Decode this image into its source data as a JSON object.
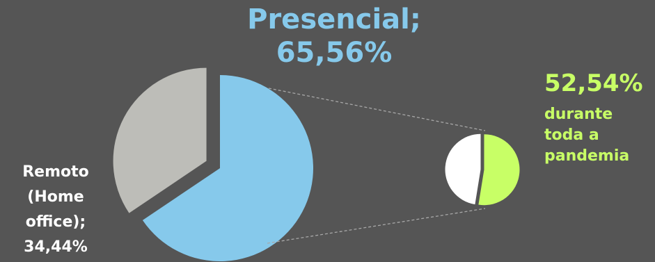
{
  "chart_data": [
    {
      "type": "pie",
      "slices": [
        {
          "label": "Presencial",
          "value": 65.56,
          "color": "#86C9EB",
          "exploded": false
        },
        {
          "label": "Remoto (Home office)",
          "value": 34.44,
          "color": "#BDBDB8",
          "exploded": true
        }
      ]
    },
    {
      "type": "pie",
      "slices": [
        {
          "label": "durante toda a pandemia",
          "value": 52.54,
          "color": "#C8FF66"
        },
        {
          "label": "",
          "value": 47.46,
          "color": "#FFFFFF"
        }
      ]
    }
  ],
  "labels": {
    "presencial_line1": "Presencial;",
    "presencial_line2": "65,56%",
    "remoto_line1": "Remoto",
    "remoto_line2": "(Home",
    "remoto_line3": "office);",
    "remoto_line4": "34,44%",
    "pandemia_pct": "52,54%",
    "pandemia_line1": "durante",
    "pandemia_line2": "toda a",
    "pandemia_line3": "pandemia"
  },
  "colors": {
    "background": "#555555",
    "connector": "#A8A8A8"
  }
}
